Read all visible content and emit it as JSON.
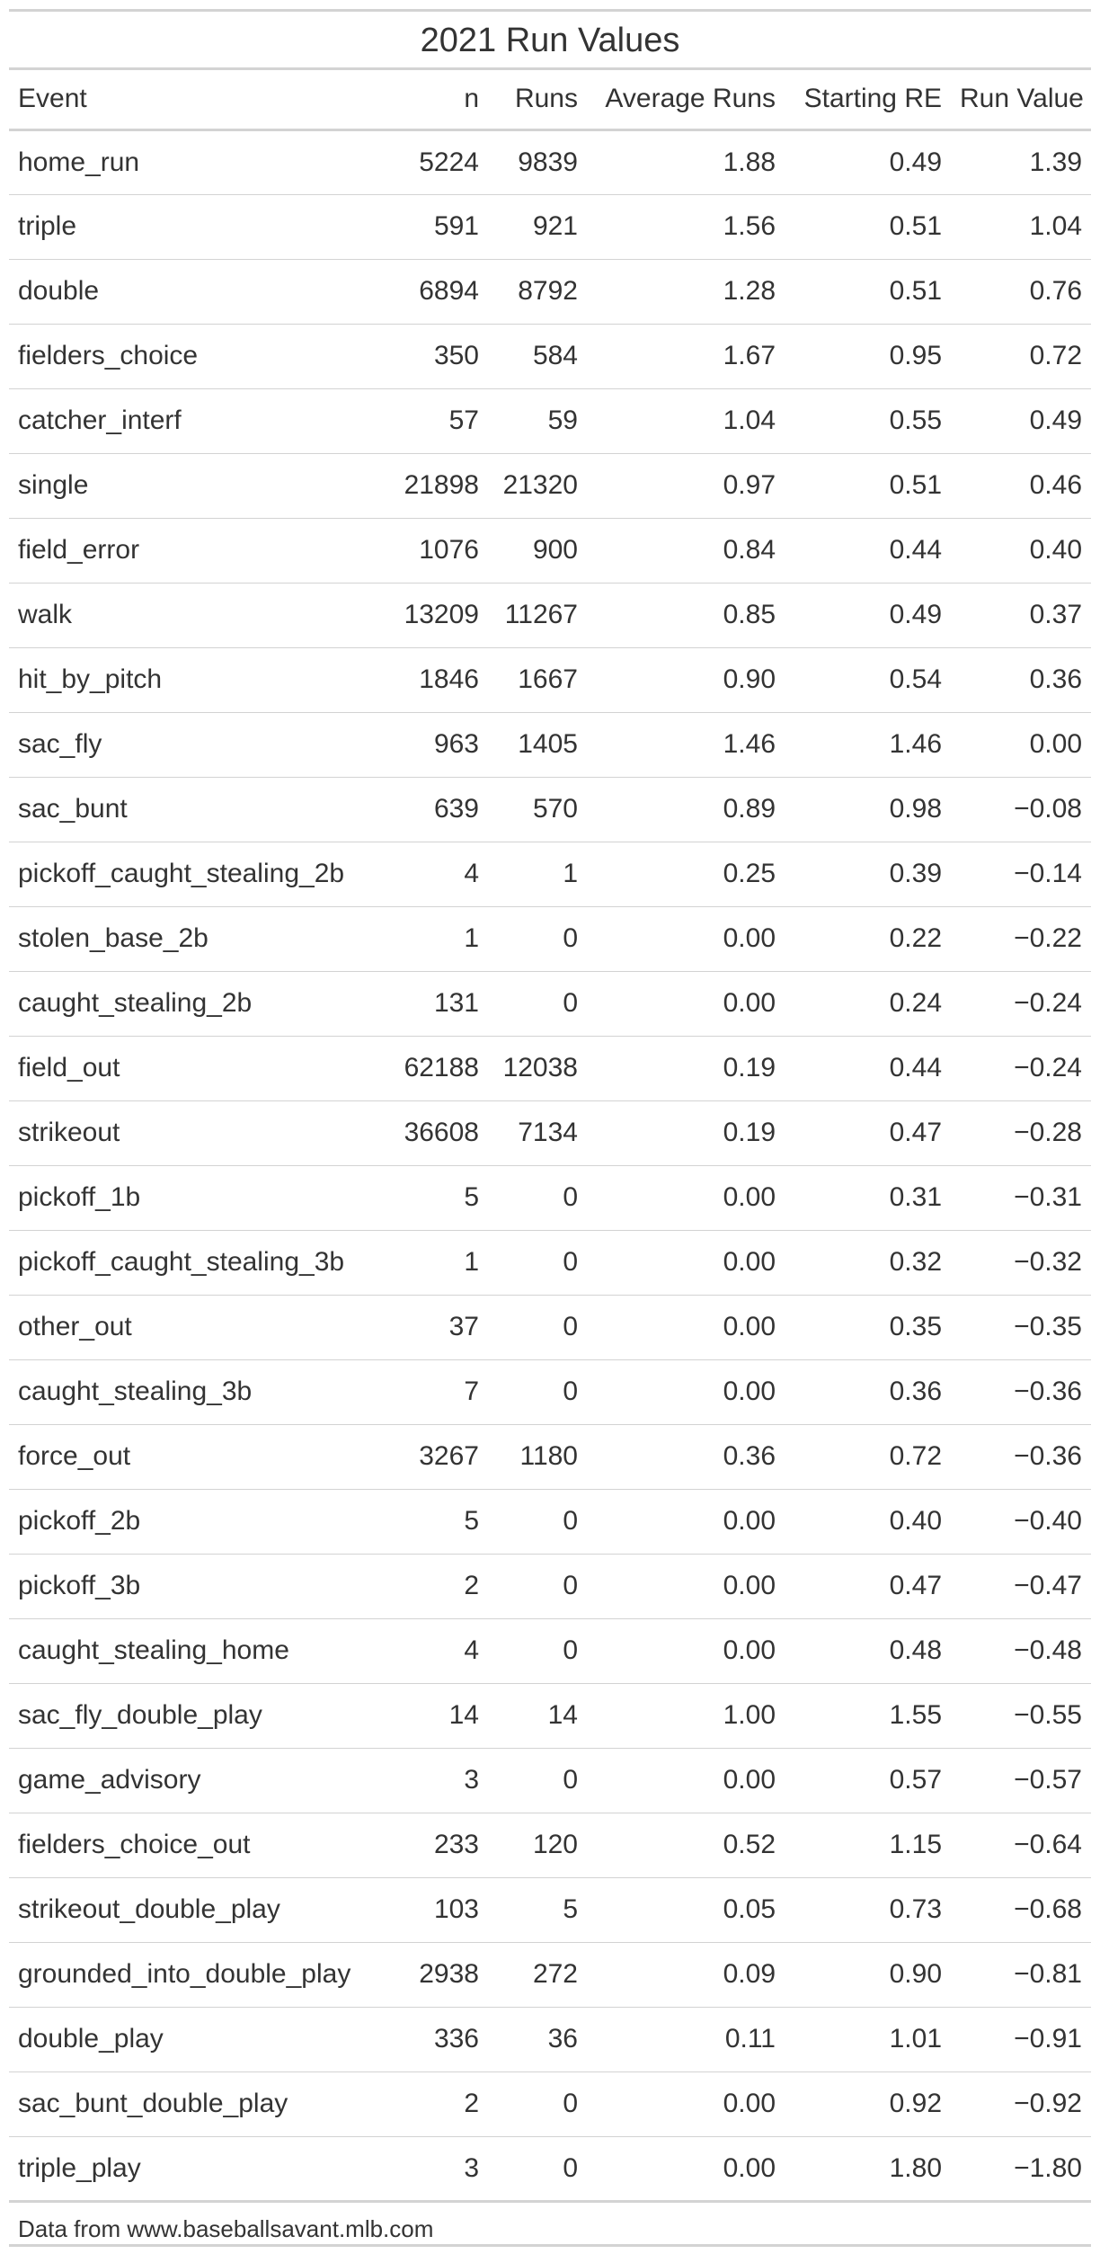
{
  "table": {
    "title": "2021 Run Values",
    "columns": [
      "Event",
      "n",
      "Runs",
      "Average Runs",
      "Starting RE",
      "Run Value"
    ],
    "rows": [
      {
        "event": "home_run",
        "n": "5224",
        "runs": "9839",
        "avg": "1.88",
        "start": "0.49",
        "rv": "1.39"
      },
      {
        "event": "triple",
        "n": "591",
        "runs": "921",
        "avg": "1.56",
        "start": "0.51",
        "rv": "1.04"
      },
      {
        "event": "double",
        "n": "6894",
        "runs": "8792",
        "avg": "1.28",
        "start": "0.51",
        "rv": "0.76"
      },
      {
        "event": "fielders_choice",
        "n": "350",
        "runs": "584",
        "avg": "1.67",
        "start": "0.95",
        "rv": "0.72"
      },
      {
        "event": "catcher_interf",
        "n": "57",
        "runs": "59",
        "avg": "1.04",
        "start": "0.55",
        "rv": "0.49"
      },
      {
        "event": "single",
        "n": "21898",
        "runs": "21320",
        "avg": "0.97",
        "start": "0.51",
        "rv": "0.46"
      },
      {
        "event": "field_error",
        "n": "1076",
        "runs": "900",
        "avg": "0.84",
        "start": "0.44",
        "rv": "0.40"
      },
      {
        "event": "walk",
        "n": "13209",
        "runs": "11267",
        "avg": "0.85",
        "start": "0.49",
        "rv": "0.37"
      },
      {
        "event": "hit_by_pitch",
        "n": "1846",
        "runs": "1667",
        "avg": "0.90",
        "start": "0.54",
        "rv": "0.36"
      },
      {
        "event": "sac_fly",
        "n": "963",
        "runs": "1405",
        "avg": "1.46",
        "start": "1.46",
        "rv": "0.00"
      },
      {
        "event": "sac_bunt",
        "n": "639",
        "runs": "570",
        "avg": "0.89",
        "start": "0.98",
        "rv": "−0.08"
      },
      {
        "event": "pickoff_caught_stealing_2b",
        "n": "4",
        "runs": "1",
        "avg": "0.25",
        "start": "0.39",
        "rv": "−0.14"
      },
      {
        "event": "stolen_base_2b",
        "n": "1",
        "runs": "0",
        "avg": "0.00",
        "start": "0.22",
        "rv": "−0.22"
      },
      {
        "event": "caught_stealing_2b",
        "n": "131",
        "runs": "0",
        "avg": "0.00",
        "start": "0.24",
        "rv": "−0.24"
      },
      {
        "event": "field_out",
        "n": "62188",
        "runs": "12038",
        "avg": "0.19",
        "start": "0.44",
        "rv": "−0.24"
      },
      {
        "event": "strikeout",
        "n": "36608",
        "runs": "7134",
        "avg": "0.19",
        "start": "0.47",
        "rv": "−0.28"
      },
      {
        "event": "pickoff_1b",
        "n": "5",
        "runs": "0",
        "avg": "0.00",
        "start": "0.31",
        "rv": "−0.31"
      },
      {
        "event": "pickoff_caught_stealing_3b",
        "n": "1",
        "runs": "0",
        "avg": "0.00",
        "start": "0.32",
        "rv": "−0.32"
      },
      {
        "event": "other_out",
        "n": "37",
        "runs": "0",
        "avg": "0.00",
        "start": "0.35",
        "rv": "−0.35"
      },
      {
        "event": "caught_stealing_3b",
        "n": "7",
        "runs": "0",
        "avg": "0.00",
        "start": "0.36",
        "rv": "−0.36"
      },
      {
        "event": "force_out",
        "n": "3267",
        "runs": "1180",
        "avg": "0.36",
        "start": "0.72",
        "rv": "−0.36"
      },
      {
        "event": "pickoff_2b",
        "n": "5",
        "runs": "0",
        "avg": "0.00",
        "start": "0.40",
        "rv": "−0.40"
      },
      {
        "event": "pickoff_3b",
        "n": "2",
        "runs": "0",
        "avg": "0.00",
        "start": "0.47",
        "rv": "−0.47"
      },
      {
        "event": "caught_stealing_home",
        "n": "4",
        "runs": "0",
        "avg": "0.00",
        "start": "0.48",
        "rv": "−0.48"
      },
      {
        "event": "sac_fly_double_play",
        "n": "14",
        "runs": "14",
        "avg": "1.00",
        "start": "1.55",
        "rv": "−0.55"
      },
      {
        "event": "game_advisory",
        "n": "3",
        "runs": "0",
        "avg": "0.00",
        "start": "0.57",
        "rv": "−0.57"
      },
      {
        "event": "fielders_choice_out",
        "n": "233",
        "runs": "120",
        "avg": "0.52",
        "start": "1.15",
        "rv": "−0.64"
      },
      {
        "event": "strikeout_double_play",
        "n": "103",
        "runs": "5",
        "avg": "0.05",
        "start": "0.73",
        "rv": "−0.68"
      },
      {
        "event": "grounded_into_double_play",
        "n": "2938",
        "runs": "272",
        "avg": "0.09",
        "start": "0.90",
        "rv": "−0.81"
      },
      {
        "event": "double_play",
        "n": "336",
        "runs": "36",
        "avg": "0.11",
        "start": "1.01",
        "rv": "−0.91"
      },
      {
        "event": "sac_bunt_double_play",
        "n": "2",
        "runs": "0",
        "avg": "0.00",
        "start": "0.92",
        "rv": "−0.92"
      },
      {
        "event": "triple_play",
        "n": "3",
        "runs": "0",
        "avg": "0.00",
        "start": "1.80",
        "rv": "−1.80"
      }
    ],
    "source_note": "Data from www.baseballsavant.mlb.com"
  },
  "colors": {
    "text": "#333333",
    "rule": "#d3d3d3",
    "background": "#ffffff"
  }
}
